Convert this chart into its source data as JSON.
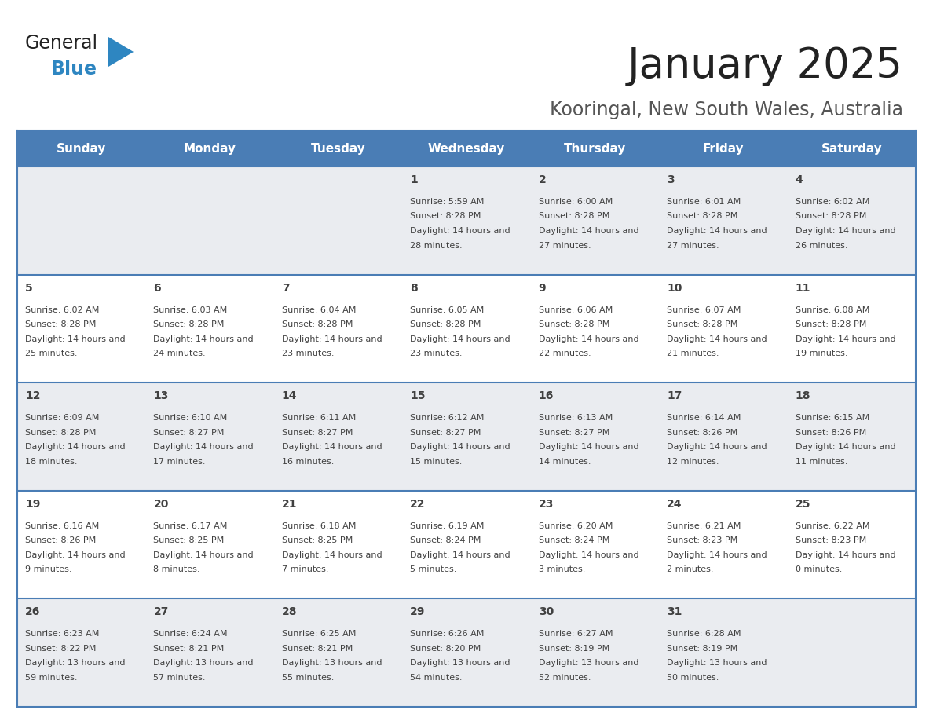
{
  "title": "January 2025",
  "subtitle": "Kooringal, New South Wales, Australia",
  "header_bg": "#4A7DB5",
  "header_text_color": "#FFFFFF",
  "cell_bg_odd": "#EAECF0",
  "cell_bg_even": "#FFFFFF",
  "grid_line_color": "#4A7DB5",
  "text_color": "#404040",
  "title_color": "#222222",
  "subtitle_color": "#555555",
  "logo_general_color": "#222222",
  "logo_blue_color": "#2E86C1",
  "day_headers": [
    "Sunday",
    "Monday",
    "Tuesday",
    "Wednesday",
    "Thursday",
    "Friday",
    "Saturday"
  ],
  "weeks": [
    [
      {
        "day": "",
        "sunrise": "",
        "sunset": "",
        "daylight": ""
      },
      {
        "day": "",
        "sunrise": "",
        "sunset": "",
        "daylight": ""
      },
      {
        "day": "",
        "sunrise": "",
        "sunset": "",
        "daylight": ""
      },
      {
        "day": "1",
        "sunrise": "5:59 AM",
        "sunset": "8:28 PM",
        "daylight": "14 hours and 28 minutes."
      },
      {
        "day": "2",
        "sunrise": "6:00 AM",
        "sunset": "8:28 PM",
        "daylight": "14 hours and 27 minutes."
      },
      {
        "day": "3",
        "sunrise": "6:01 AM",
        "sunset": "8:28 PM",
        "daylight": "14 hours and 27 minutes."
      },
      {
        "day": "4",
        "sunrise": "6:02 AM",
        "sunset": "8:28 PM",
        "daylight": "14 hours and 26 minutes."
      }
    ],
    [
      {
        "day": "5",
        "sunrise": "6:02 AM",
        "sunset": "8:28 PM",
        "daylight": "14 hours and 25 minutes."
      },
      {
        "day": "6",
        "sunrise": "6:03 AM",
        "sunset": "8:28 PM",
        "daylight": "14 hours and 24 minutes."
      },
      {
        "day": "7",
        "sunrise": "6:04 AM",
        "sunset": "8:28 PM",
        "daylight": "14 hours and 23 minutes."
      },
      {
        "day": "8",
        "sunrise": "6:05 AM",
        "sunset": "8:28 PM",
        "daylight": "14 hours and 23 minutes."
      },
      {
        "day": "9",
        "sunrise": "6:06 AM",
        "sunset": "8:28 PM",
        "daylight": "14 hours and 22 minutes."
      },
      {
        "day": "10",
        "sunrise": "6:07 AM",
        "sunset": "8:28 PM",
        "daylight": "14 hours and 21 minutes."
      },
      {
        "day": "11",
        "sunrise": "6:08 AM",
        "sunset": "8:28 PM",
        "daylight": "14 hours and 19 minutes."
      }
    ],
    [
      {
        "day": "12",
        "sunrise": "6:09 AM",
        "sunset": "8:28 PM",
        "daylight": "14 hours and 18 minutes."
      },
      {
        "day": "13",
        "sunrise": "6:10 AM",
        "sunset": "8:27 PM",
        "daylight": "14 hours and 17 minutes."
      },
      {
        "day": "14",
        "sunrise": "6:11 AM",
        "sunset": "8:27 PM",
        "daylight": "14 hours and 16 minutes."
      },
      {
        "day": "15",
        "sunrise": "6:12 AM",
        "sunset": "8:27 PM",
        "daylight": "14 hours and 15 minutes."
      },
      {
        "day": "16",
        "sunrise": "6:13 AM",
        "sunset": "8:27 PM",
        "daylight": "14 hours and 14 minutes."
      },
      {
        "day": "17",
        "sunrise": "6:14 AM",
        "sunset": "8:26 PM",
        "daylight": "14 hours and 12 minutes."
      },
      {
        "day": "18",
        "sunrise": "6:15 AM",
        "sunset": "8:26 PM",
        "daylight": "14 hours and 11 minutes."
      }
    ],
    [
      {
        "day": "19",
        "sunrise": "6:16 AM",
        "sunset": "8:26 PM",
        "daylight": "14 hours and 9 minutes."
      },
      {
        "day": "20",
        "sunrise": "6:17 AM",
        "sunset": "8:25 PM",
        "daylight": "14 hours and 8 minutes."
      },
      {
        "day": "21",
        "sunrise": "6:18 AM",
        "sunset": "8:25 PM",
        "daylight": "14 hours and 7 minutes."
      },
      {
        "day": "22",
        "sunrise": "6:19 AM",
        "sunset": "8:24 PM",
        "daylight": "14 hours and 5 minutes."
      },
      {
        "day": "23",
        "sunrise": "6:20 AM",
        "sunset": "8:24 PM",
        "daylight": "14 hours and 3 minutes."
      },
      {
        "day": "24",
        "sunrise": "6:21 AM",
        "sunset": "8:23 PM",
        "daylight": "14 hours and 2 minutes."
      },
      {
        "day": "25",
        "sunrise": "6:22 AM",
        "sunset": "8:23 PM",
        "daylight": "14 hours and 0 minutes."
      }
    ],
    [
      {
        "day": "26",
        "sunrise": "6:23 AM",
        "sunset": "8:22 PM",
        "daylight": "13 hours and 59 minutes."
      },
      {
        "day": "27",
        "sunrise": "6:24 AM",
        "sunset": "8:21 PM",
        "daylight": "13 hours and 57 minutes."
      },
      {
        "day": "28",
        "sunrise": "6:25 AM",
        "sunset": "8:21 PM",
        "daylight": "13 hours and 55 minutes."
      },
      {
        "day": "29",
        "sunrise": "6:26 AM",
        "sunset": "8:20 PM",
        "daylight": "13 hours and 54 minutes."
      },
      {
        "day": "30",
        "sunrise": "6:27 AM",
        "sunset": "8:19 PM",
        "daylight": "13 hours and 52 minutes."
      },
      {
        "day": "31",
        "sunrise": "6:28 AM",
        "sunset": "8:19 PM",
        "daylight": "13 hours and 50 minutes."
      },
      {
        "day": "",
        "sunrise": "",
        "sunset": "",
        "daylight": ""
      }
    ]
  ]
}
